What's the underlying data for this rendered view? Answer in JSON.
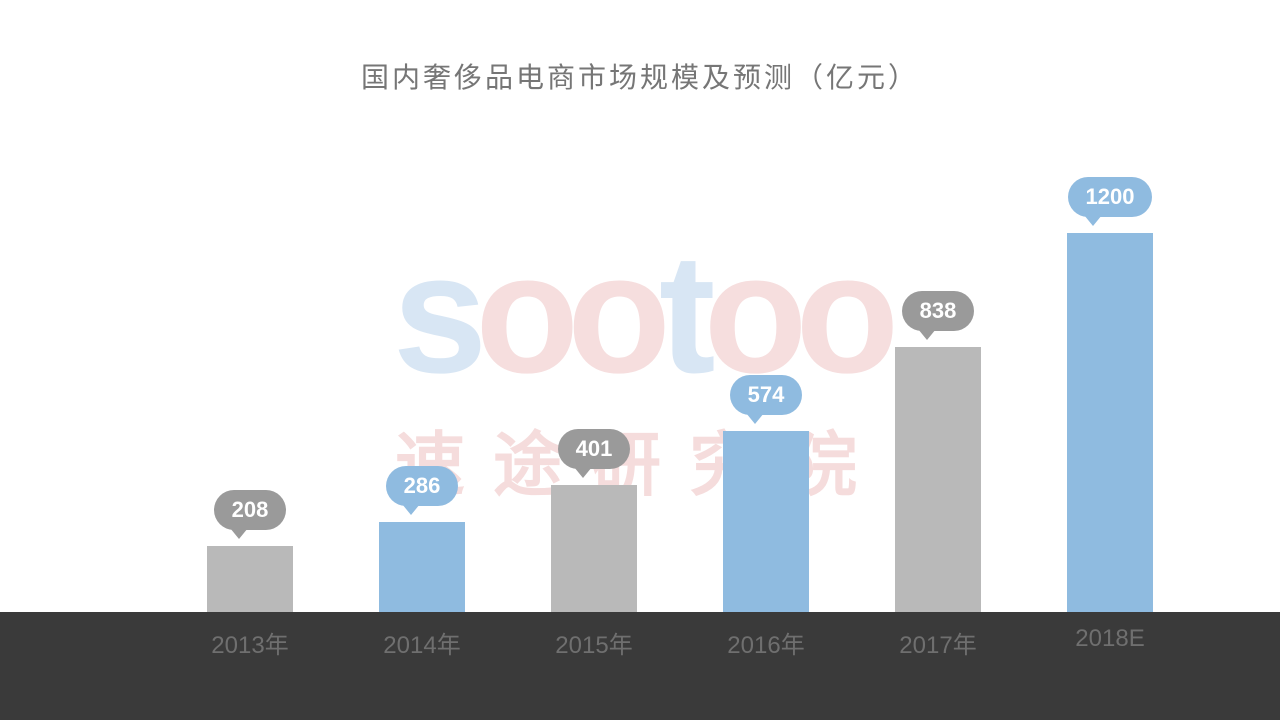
{
  "chart": {
    "type": "bar",
    "title": "国内奢侈品电商市场规模及预测（亿元）",
    "title_color": "#767676",
    "title_fontsize": 28,
    "background_color": "#ffffff",
    "xaxis_band_color": "#3a3a3a",
    "xaxis_label_color": "#6f6f6f",
    "xaxis_label_fontsize": 24,
    "ylim": [
      0,
      1400
    ],
    "categories": [
      "2013年",
      "2014年",
      "2015年",
      "2016年",
      "2017年",
      "2018E"
    ],
    "values": [
      208,
      286,
      401,
      574,
      838,
      1200
    ],
    "bar_colors": [
      "#b9b9b9",
      "#8fbbe0",
      "#b9b9b9",
      "#8fbbe0",
      "#b9b9b9",
      "#8fbbe0"
    ],
    "bubble_colors": [
      "#9a9a9a",
      "#8fbbe0",
      "#9a9a9a",
      "#8fbbe0",
      "#9a9a9a",
      "#8fbbe0"
    ],
    "bubble_text_color": "#ffffff",
    "bubble_fontsize": 22,
    "bar_width_pct": 62
  },
  "watermark": {
    "logo_text": "sootoo",
    "logo_colors": [
      "#d8e6f4",
      "#f6dede",
      "#f6dede",
      "#d8e6f4",
      "#f6dede",
      "#f6dede"
    ],
    "sub_text": "速途研究院",
    "sub_color": "#f5dcdc",
    "logo_fontsize": 170,
    "sub_fontsize": 70
  }
}
